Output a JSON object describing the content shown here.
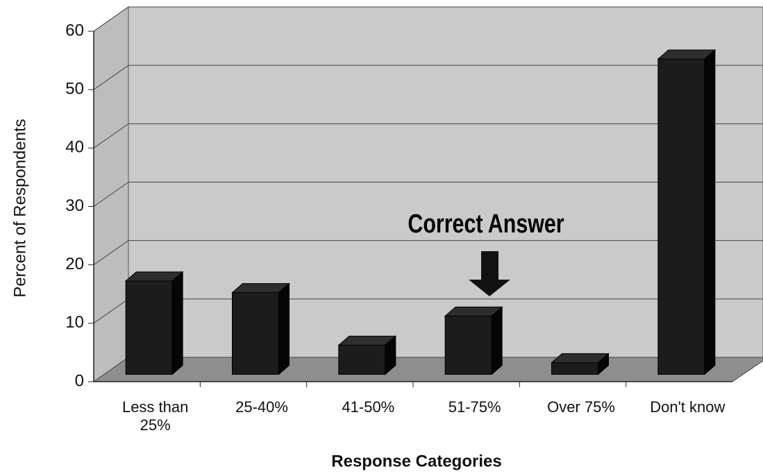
{
  "chart_data": {
    "type": "bar3d",
    "categories": [
      "Less than 25%",
      "25-40%",
      "41-50%",
      "51-75%",
      "Over 75%",
      "Don't know"
    ],
    "values": [
      16,
      14,
      5,
      10,
      2,
      54
    ],
    "color": "#1c1c1c",
    "x_label": "Response Categories",
    "y_label": "Percent of Respondents",
    "annotation": "Correct Answer",
    "ylim": [
      0,
      60
    ],
    "yticks": [
      0,
      10,
      20,
      30,
      40,
      50,
      60
    ],
    "grid": true
  }
}
